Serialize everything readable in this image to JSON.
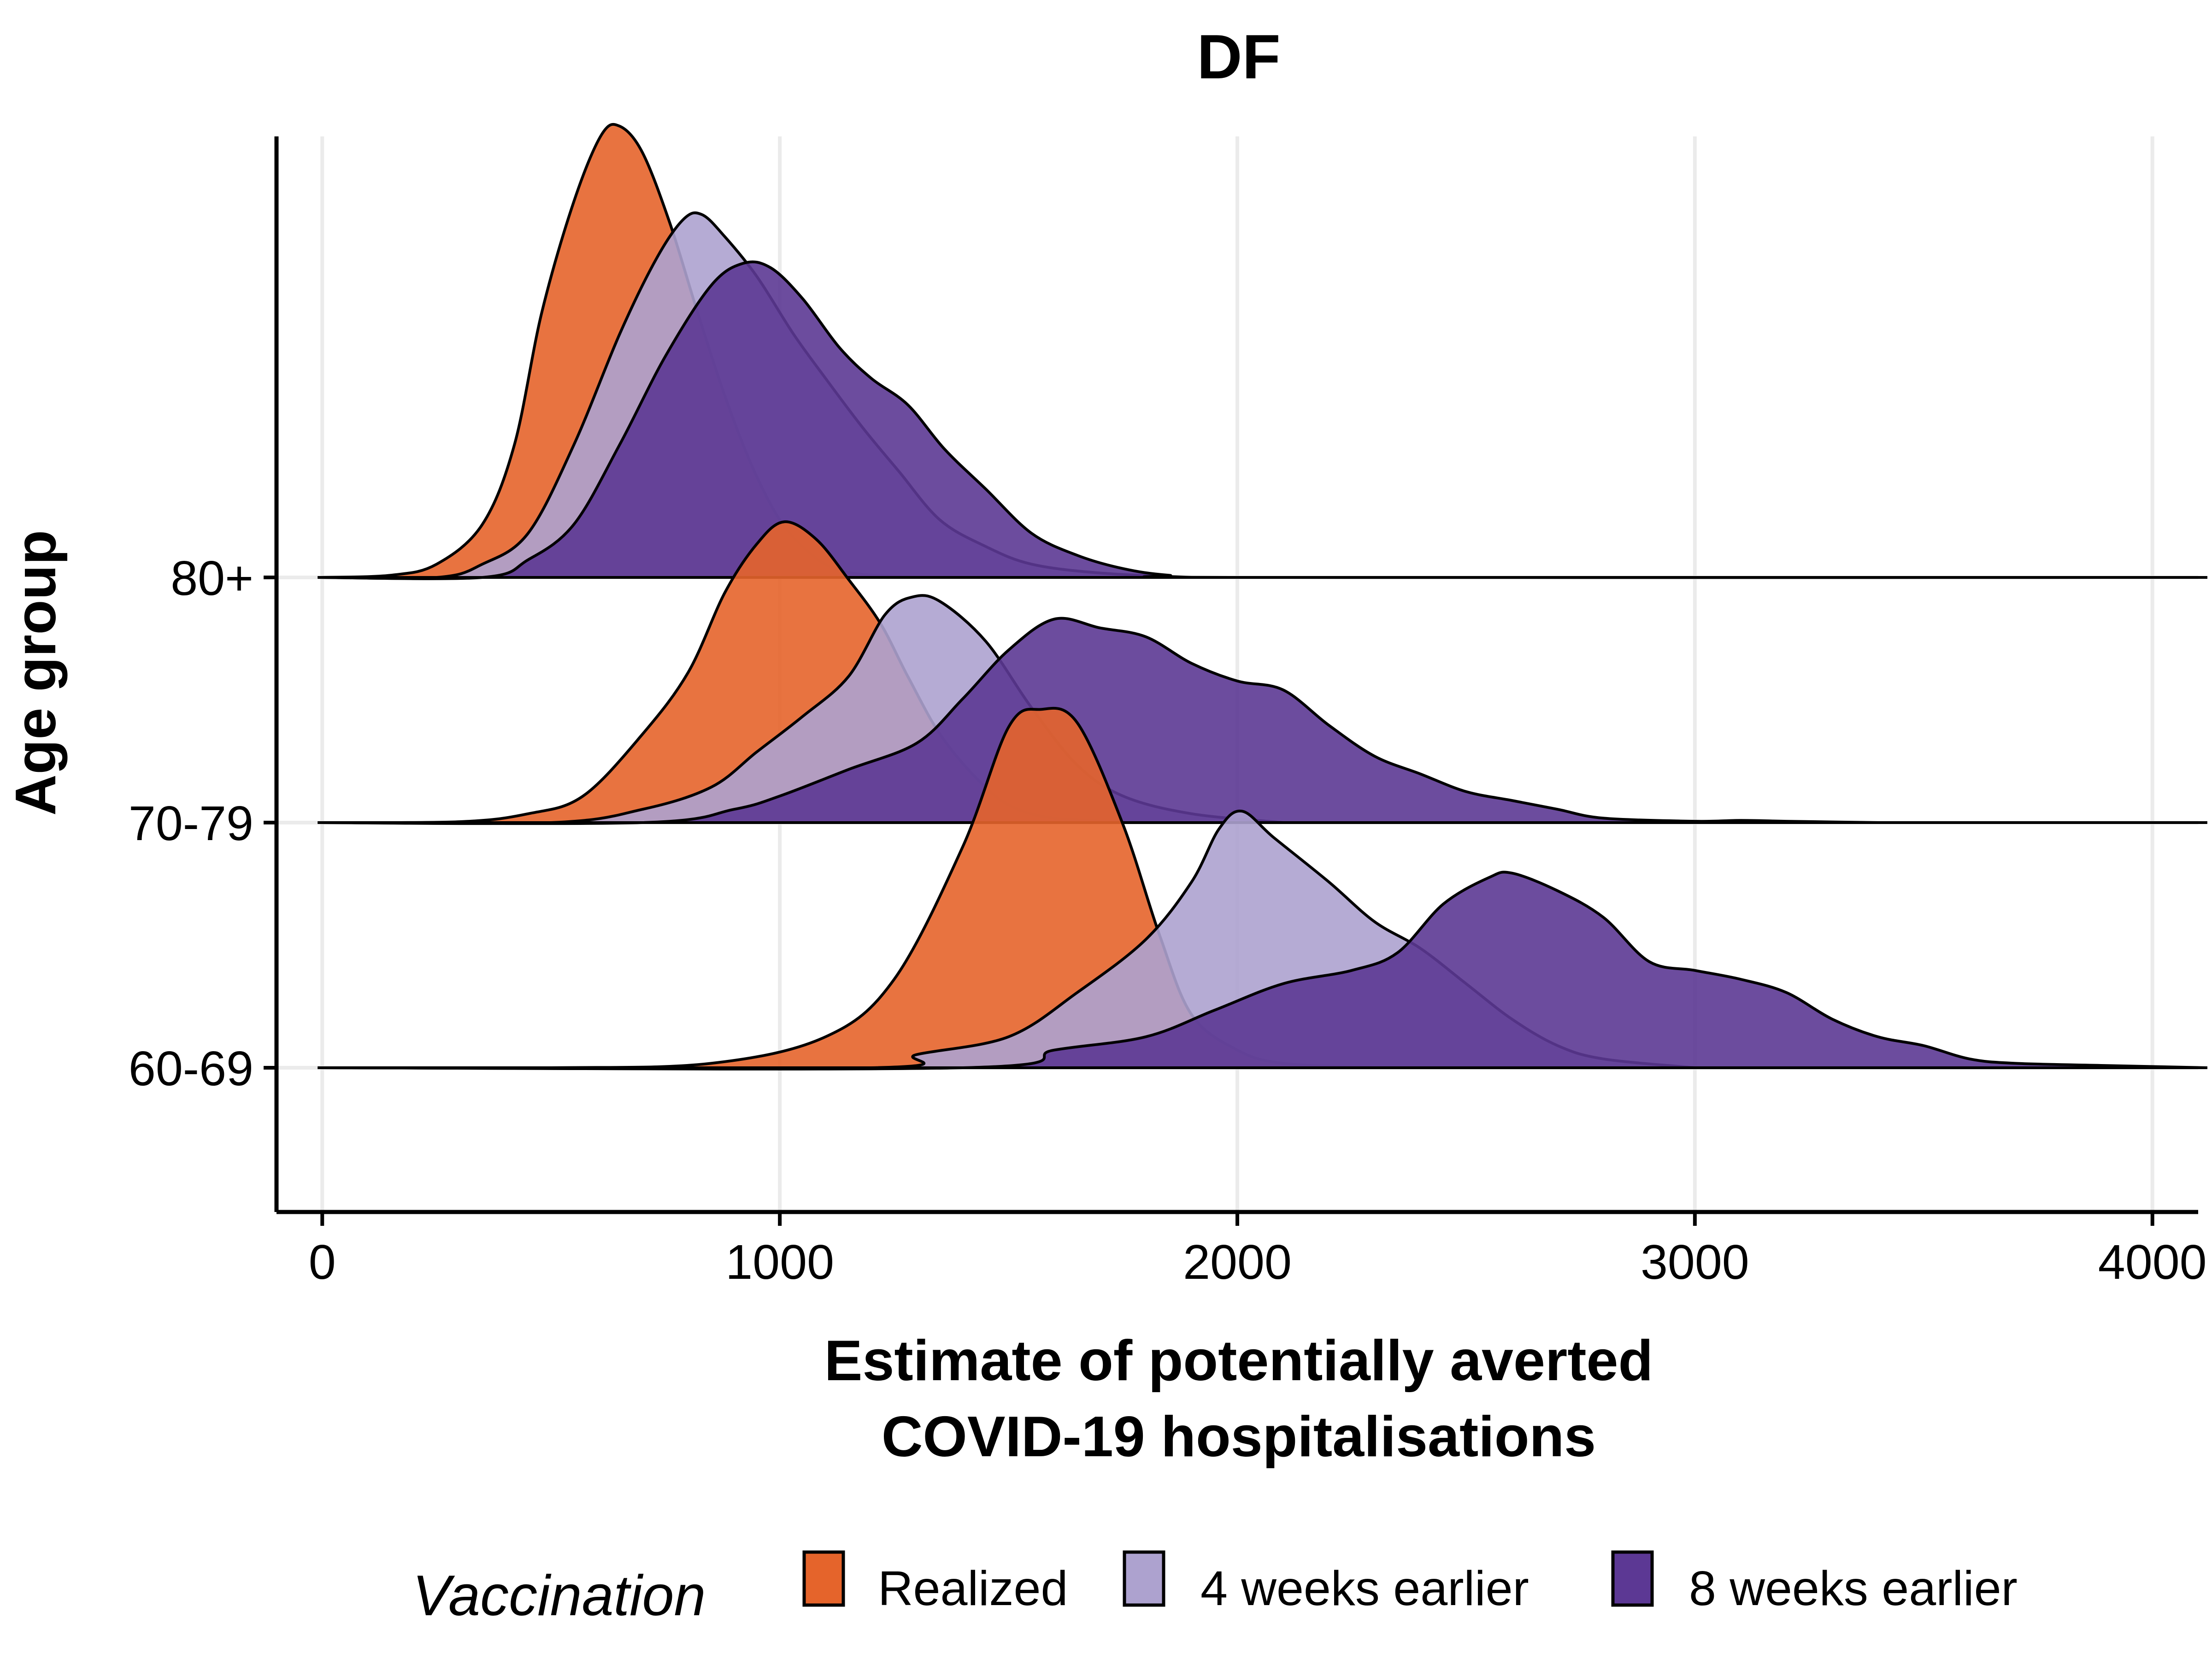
{
  "chart_data": {
    "type": "ridgeline",
    "title": "DF",
    "xlabel_lines": [
      "Estimate of potentially averted",
      "COVID-19 hospitalisations"
    ],
    "ylabel": "Age group",
    "xlim": [
      -100,
      4100
    ],
    "xticks": [
      0,
      1000,
      2000,
      3000,
      4000
    ],
    "tick_labels": [
      "0",
      "1000",
      "2000",
      "3000",
      "4000"
    ],
    "grid": true,
    "legend": {
      "title": "Vaccination",
      "position": "bottom",
      "items": [
        {
          "label": "Realized",
          "color": "#e5642b"
        },
        {
          "label": "4 weeks earlier",
          "color": "#ada2cf"
        },
        {
          "label": "8 weeks earlier",
          "color": "#5c3894"
        }
      ]
    },
    "series_colors": [
      "#e5642b",
      "#ada2cf",
      "#5c3894"
    ],
    "groups": [
      {
        "label": "60-69",
        "densities": [
          {
            "series": "Realized",
            "points": [
              [
                -10,
                0
              ],
              [
                500,
                0
              ],
              [
                850,
                0.01
              ],
              [
                1100,
                0.07
              ],
              [
                1250,
                0.2
              ],
              [
                1400,
                0.5
              ],
              [
                1500,
                0.77
              ],
              [
                1570,
                0.81
              ],
              [
                1650,
                0.78
              ],
              [
                1750,
                0.55
              ],
              [
                1830,
                0.3
              ],
              [
                1900,
                0.12
              ],
              [
                2000,
                0.04
              ],
              [
                2100,
                0.01
              ],
              [
                2300,
                0
              ]
            ]
          },
          {
            "series": "4 weeks earlier",
            "points": [
              [
                -10,
                0
              ],
              [
                1200,
                0
              ],
              [
                1300,
                0.03
              ],
              [
                1500,
                0.07
              ],
              [
                1650,
                0.17
              ],
              [
                1800,
                0.29
              ],
              [
                1900,
                0.42
              ],
              [
                1960,
                0.54
              ],
              [
                2010,
                0.58
              ],
              [
                2080,
                0.52
              ],
              [
                2200,
                0.42
              ],
              [
                2300,
                0.33
              ],
              [
                2400,
                0.27
              ],
              [
                2500,
                0.19
              ],
              [
                2600,
                0.11
              ],
              [
                2700,
                0.05
              ],
              [
                2800,
                0.02
              ],
              [
                3000,
                0
              ]
            ]
          },
          {
            "series": "8 weeks earlier",
            "points": [
              [
                -10,
                0
              ],
              [
                1400,
                0
              ],
              [
                1600,
                0.04
              ],
              [
                1800,
                0.07
              ],
              [
                1950,
                0.13
              ],
              [
                2100,
                0.19
              ],
              [
                2250,
                0.22
              ],
              [
                2350,
                0.26
              ],
              [
                2450,
                0.37
              ],
              [
                2550,
                0.43
              ],
              [
                2600,
                0.44
              ],
              [
                2700,
                0.4
              ],
              [
                2800,
                0.34
              ],
              [
                2900,
                0.24
              ],
              [
                3000,
                0.22
              ],
              [
                3100,
                0.2
              ],
              [
                3200,
                0.17
              ],
              [
                3300,
                0.11
              ],
              [
                3400,
                0.07
              ],
              [
                3500,
                0.05
              ],
              [
                3600,
                0.02
              ],
              [
                3700,
                0.01
              ],
              [
                3900,
                0.005
              ],
              [
                4120,
                0
              ]
            ]
          }
        ]
      },
      {
        "label": "70-79",
        "densities": [
          {
            "series": "Realized",
            "points": [
              [
                -10,
                0
              ],
              [
                300,
                0.002
              ],
              [
                450,
                0.02
              ],
              [
                570,
                0.06
              ],
              [
                700,
                0.2
              ],
              [
                800,
                0.34
              ],
              [
                880,
                0.52
              ],
              [
                950,
                0.63
              ],
              [
                1010,
                0.68
              ],
              [
                1080,
                0.64
              ],
              [
                1150,
                0.55
              ],
              [
                1220,
                0.45
              ],
              [
                1280,
                0.33
              ],
              [
                1350,
                0.2
              ],
              [
                1430,
                0.1
              ],
              [
                1500,
                0.04
              ],
              [
                1600,
                0.01
              ],
              [
                1800,
                0
              ]
            ]
          },
          {
            "series": "4 weeks earlier",
            "points": [
              [
                -10,
                0
              ],
              [
                500,
                0
              ],
              [
                700,
                0.03
              ],
              [
                850,
                0.08
              ],
              [
                950,
                0.16
              ],
              [
                1050,
                0.24
              ],
              [
                1150,
                0.33
              ],
              [
                1230,
                0.47
              ],
              [
                1290,
                0.51
              ],
              [
                1350,
                0.5
              ],
              [
                1450,
                0.41
              ],
              [
                1550,
                0.26
              ],
              [
                1650,
                0.13
              ],
              [
                1750,
                0.06
              ],
              [
                1900,
                0.02
              ],
              [
                2100,
                0
              ]
            ]
          },
          {
            "series": "8 weeks earlier",
            "points": [
              [
                -10,
                0
              ],
              [
                700,
                0
              ],
              [
                900,
                0.03
              ],
              [
                1000,
                0.06
              ],
              [
                1150,
                0.12
              ],
              [
                1300,
                0.18
              ],
              [
                1400,
                0.28
              ],
              [
                1500,
                0.39
              ],
              [
                1600,
                0.46
              ],
              [
                1700,
                0.44
              ],
              [
                1800,
                0.42
              ],
              [
                1900,
                0.36
              ],
              [
                2000,
                0.32
              ],
              [
                2100,
                0.3
              ],
              [
                2200,
                0.22
              ],
              [
                2300,
                0.15
              ],
              [
                2400,
                0.11
              ],
              [
                2500,
                0.07
              ],
              [
                2600,
                0.05
              ],
              [
                2700,
                0.03
              ],
              [
                2800,
                0.01
              ],
              [
                3000,
                0.003
              ],
              [
                3100,
                0.005
              ],
              [
                3200,
                0.003
              ],
              [
                3400,
                0
              ]
            ]
          }
        ]
      },
      {
        "label": "80+",
        "densities": [
          {
            "series": "Realized",
            "points": [
              [
                -10,
                0
              ],
              [
                150,
                0.005
              ],
              [
                250,
                0.03
              ],
              [
                350,
                0.12
              ],
              [
                420,
                0.3
              ],
              [
                480,
                0.6
              ],
              [
                550,
                0.85
              ],
              [
                610,
                1.0
              ],
              [
                650,
                1.02
              ],
              [
                700,
                0.96
              ],
              [
                760,
                0.8
              ],
              [
                820,
                0.6
              ],
              [
                880,
                0.41
              ],
              [
                940,
                0.25
              ],
              [
                1000,
                0.13
              ],
              [
                1060,
                0.06
              ],
              [
                1120,
                0.02
              ],
              [
                1200,
                0.005
              ],
              [
                1350,
                0
              ]
            ]
          },
          {
            "series": "4 weeks earlier",
            "points": [
              [
                -10,
                0
              ],
              [
                250,
                0
              ],
              [
                350,
                0.03
              ],
              [
                450,
                0.1
              ],
              [
                550,
                0.3
              ],
              [
                650,
                0.55
              ],
              [
                730,
                0.72
              ],
              [
                790,
                0.81
              ],
              [
                830,
                0.82
              ],
              [
                880,
                0.77
              ],
              [
                950,
                0.68
              ],
              [
                1030,
                0.55
              ],
              [
                1100,
                0.45
              ],
              [
                1180,
                0.34
              ],
              [
                1260,
                0.24
              ],
              [
                1350,
                0.13
              ],
              [
                1450,
                0.07
              ],
              [
                1550,
                0.03
              ],
              [
                1700,
                0.01
              ],
              [
                1900,
                0
              ]
            ]
          },
          {
            "series": "8 weeks earlier",
            "points": [
              [
                -10,
                0
              ],
              [
                350,
                0
              ],
              [
                450,
                0.04
              ],
              [
                550,
                0.12
              ],
              [
                650,
                0.3
              ],
              [
                750,
                0.5
              ],
              [
                850,
                0.66
              ],
              [
                920,
                0.71
              ],
              [
                980,
                0.7
              ],
              [
                1050,
                0.63
              ],
              [
                1130,
                0.52
              ],
              [
                1200,
                0.45
              ],
              [
                1280,
                0.39
              ],
              [
                1360,
                0.29
              ],
              [
                1450,
                0.2
              ],
              [
                1550,
                0.1
              ],
              [
                1650,
                0.05
              ],
              [
                1750,
                0.02
              ],
              [
                1850,
                0.005
              ],
              [
                2000,
                0
              ],
              [
                4120,
                0
              ]
            ]
          }
        ]
      }
    ],
    "height_scale": 1.0
  }
}
